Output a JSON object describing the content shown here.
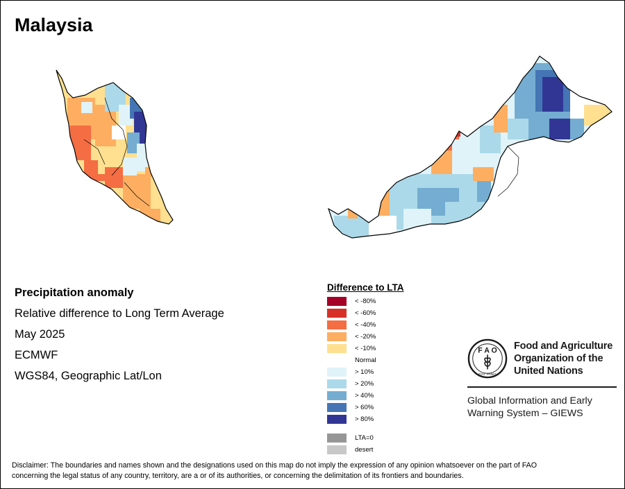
{
  "title": "Malaysia",
  "info": {
    "heading": "Precipitation anomaly",
    "subtitle": "Relative difference to Long Term Average",
    "period": "May 2025",
    "source": "ECMWF",
    "projection": "WGS84, Geographic Lat/Lon"
  },
  "legend": {
    "title": "Difference to LTA",
    "items": [
      {
        "label": "< -80%",
        "color": "#a50026"
      },
      {
        "label": "< -60%",
        "color": "#d73027"
      },
      {
        "label": "< -40%",
        "color": "#f46d43"
      },
      {
        "label": "< -20%",
        "color": "#fdae61"
      },
      {
        "label": "< -10%",
        "color": "#fee090"
      },
      {
        "label": "Normal",
        "color": "#ffffff"
      },
      {
        "label": "> 10%",
        "color": "#e0f3f8"
      },
      {
        "label": "> 20%",
        "color": "#abd9e9"
      },
      {
        "label": "> 40%",
        "color": "#74add1"
      },
      {
        "label": "> 60%",
        "color": "#4575b4"
      },
      {
        "label": "> 80%",
        "color": "#313695"
      }
    ],
    "extra": [
      {
        "label": "LTA=0",
        "color": "#969696"
      },
      {
        "label": "desert",
        "color": "#c8c8c8"
      }
    ]
  },
  "fao": {
    "line1": "Food and Agriculture",
    "line2": "Organization of the",
    "line3": "United Nations",
    "logo_text": "FAO",
    "logo_motto": "FIAT PANIS"
  },
  "giews": {
    "line1": "Global Information and Early",
    "line2": "Warning System – GIEWS"
  },
  "disclaimer": {
    "line1": "Disclaimer: The boundaries and names shown and the designations used on this map do not imply the expression of any opinion whatsoever on the part of FAO",
    "line2": "concerning the legal status of any country, territory, are a or of its authorities, or concerning the delimitation of its frontiers and boundaries."
  }
}
